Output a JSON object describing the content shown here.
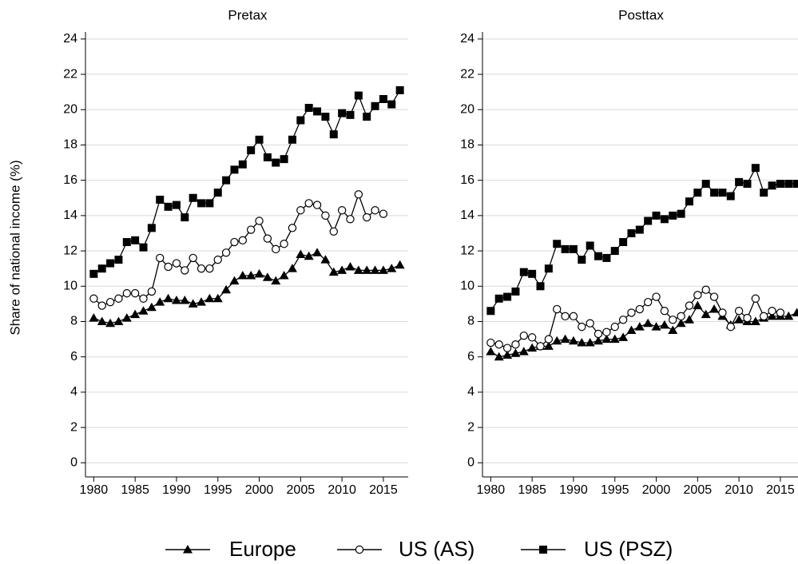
{
  "chart_data": [
    {
      "type": "line",
      "title": "Pretax",
      "ylabel": "Share of national income (%)",
      "legend": "bottom",
      "grid": true,
      "x": [
        1980,
        1981,
        1982,
        1983,
        1984,
        1985,
        1986,
        1987,
        1988,
        1989,
        1990,
        1991,
        1992,
        1993,
        1994,
        1995,
        1996,
        1997,
        1998,
        1999,
        2000,
        2001,
        2002,
        2003,
        2004,
        2005,
        2006,
        2007,
        2008,
        2009,
        2010,
        2011,
        2012,
        2013,
        2014,
        2015,
        2016,
        2017
      ],
      "xlim": [
        1979,
        2018
      ],
      "xticks": [
        1980,
        1985,
        1990,
        1995,
        2000,
        2005,
        2010,
        2015
      ],
      "ylim": [
        -0.8,
        24.4
      ],
      "yticks": [
        0,
        2,
        4,
        6,
        8,
        10,
        12,
        14,
        16,
        18,
        20,
        22,
        24
      ],
      "series": [
        {
          "name": "Europe",
          "color": "#000000",
          "marker": "triangle",
          "values": [
            8.2,
            8.0,
            7.9,
            8.0,
            8.2,
            8.4,
            8.6,
            8.8,
            9.1,
            9.3,
            9.2,
            9.2,
            9.0,
            9.1,
            9.3,
            9.3,
            9.8,
            10.3,
            10.6,
            10.6,
            10.7,
            10.5,
            10.3,
            10.6,
            11.0,
            11.8,
            11.7,
            11.9,
            11.5,
            10.8,
            10.9,
            11.1,
            10.9,
            10.9,
            10.9,
            10.9,
            11.0,
            11.2
          ]
        },
        {
          "name": "US (AS)",
          "color": "#000000",
          "marker": "open-circle",
          "values": [
            9.3,
            8.9,
            9.1,
            9.3,
            9.6,
            9.6,
            9.3,
            9.7,
            11.6,
            11.1,
            11.3,
            10.9,
            11.6,
            11.0,
            11.0,
            11.5,
            11.9,
            12.5,
            12.6,
            13.2,
            13.7,
            12.7,
            12.1,
            12.4,
            13.3,
            14.3,
            14.7,
            14.6,
            14.0,
            13.1,
            14.3,
            13.8,
            15.2,
            13.9,
            14.3,
            14.1,
            null,
            null
          ]
        },
        {
          "name": "US (PSZ)",
          "color": "#000000",
          "marker": "square",
          "values": [
            10.7,
            11.0,
            11.3,
            11.5,
            12.5,
            12.6,
            12.2,
            13.3,
            14.9,
            14.5,
            14.6,
            13.9,
            15.0,
            14.7,
            14.7,
            15.3,
            16.0,
            16.6,
            16.9,
            17.7,
            18.3,
            17.3,
            17.0,
            17.2,
            18.3,
            19.4,
            20.1,
            19.9,
            19.6,
            18.6,
            19.8,
            19.7,
            20.8,
            19.6,
            20.2,
            20.6,
            20.3,
            21.1
          ]
        }
      ]
    },
    {
      "type": "line",
      "title": "Posttax",
      "grid": true,
      "x": [
        1980,
        1981,
        1982,
        1983,
        1984,
        1985,
        1986,
        1987,
        1988,
        1989,
        1990,
        1991,
        1992,
        1993,
        1994,
        1995,
        1996,
        1997,
        1998,
        1999,
        2000,
        2001,
        2002,
        2003,
        2004,
        2005,
        2006,
        2007,
        2008,
        2009,
        2010,
        2011,
        2012,
        2013,
        2014,
        2015,
        2016,
        2017
      ],
      "xlim": [
        1979,
        2018
      ],
      "xticks": [
        1980,
        1985,
        1990,
        1995,
        2000,
        2005,
        2010,
        2015
      ],
      "ylim": [
        -0.8,
        24.4
      ],
      "yticks": [
        0,
        2,
        4,
        6,
        8,
        10,
        12,
        14,
        16,
        18,
        20,
        22,
        24
      ],
      "series": [
        {
          "color": "#000000",
          "marker": "triangle",
          "values": [
            6.3,
            6.0,
            6.1,
            6.2,
            6.3,
            6.5,
            6.6,
            6.6,
            6.9,
            7.0,
            6.9,
            6.8,
            6.8,
            6.9,
            7.0,
            7.0,
            7.1,
            7.5,
            7.7,
            7.9,
            7.7,
            7.8,
            7.5,
            7.9,
            8.1,
            8.9,
            8.4,
            8.7,
            8.3,
            7.8,
            8.1,
            8.0,
            8.0,
            8.2,
            8.3,
            8.3,
            8.3,
            8.5
          ]
        },
        {
          "color": "#000000",
          "marker": "open-circle",
          "values": [
            6.8,
            6.7,
            6.5,
            6.7,
            7.2,
            7.1,
            6.6,
            7.0,
            8.7,
            8.3,
            8.3,
            7.7,
            7.9,
            7.3,
            7.4,
            7.7,
            8.1,
            8.5,
            8.7,
            9.1,
            9.4,
            8.6,
            8.1,
            8.3,
            8.9,
            9.5,
            9.8,
            9.4,
            8.5,
            7.7,
            8.6,
            8.2,
            9.3,
            8.3,
            8.6,
            8.5,
            null,
            null
          ]
        },
        {
          "color": "#000000",
          "marker": "square",
          "values": [
            8.6,
            9.3,
            9.4,
            9.7,
            10.8,
            10.7,
            10.0,
            11.0,
            12.4,
            12.1,
            12.1,
            11.5,
            12.3,
            11.7,
            11.6,
            12.0,
            12.5,
            13.0,
            13.2,
            13.7,
            14.0,
            13.8,
            14.0,
            14.1,
            14.8,
            15.3,
            15.8,
            15.3,
            15.3,
            15.1,
            15.9,
            15.8,
            16.7,
            15.3,
            15.7,
            15.8,
            15.8,
            15.8
          ]
        }
      ]
    }
  ]
}
